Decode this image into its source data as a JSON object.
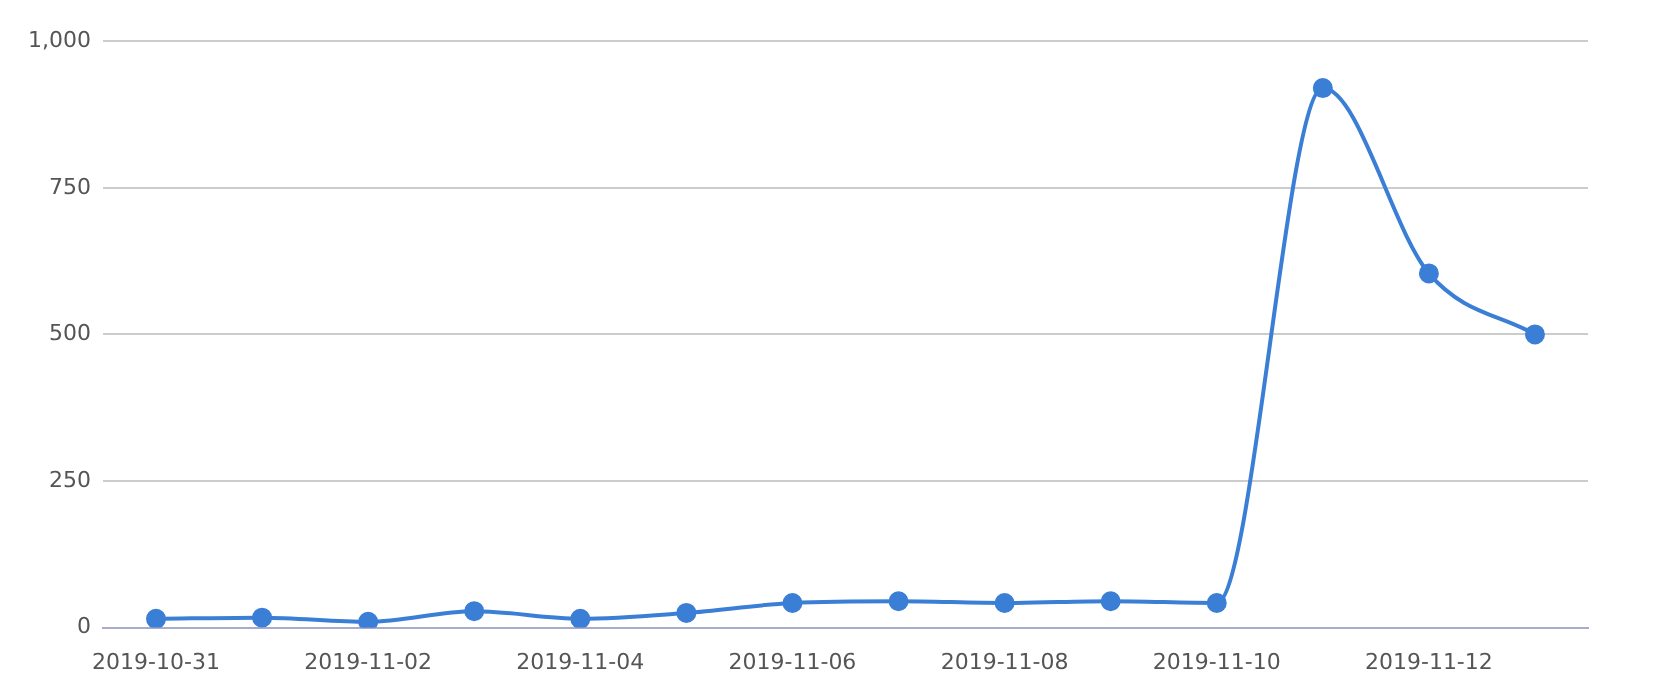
{
  "chart_data": {
    "type": "line",
    "categories": [
      "2019-10-31",
      null,
      "2019-11-02",
      null,
      "2019-11-04",
      null,
      "2019-11-06",
      null,
      "2019-11-08",
      null,
      "2019-11-10",
      null,
      "2019-11-12",
      null
    ],
    "series": [
      {
        "color": "#3a7fd5",
        "values": [
          15,
          17,
          10,
          28,
          15,
          25,
          42,
          45,
          42,
          45,
          42,
          920,
          604,
          500
        ]
      }
    ],
    "ylim": [
      0,
      1000
    ],
    "yticks": [
      0,
      250,
      500,
      750,
      {
        "value": 1000,
        "label": "1,000"
      }
    ],
    "grid": "y",
    "marker": "circle",
    "legend": false
  }
}
